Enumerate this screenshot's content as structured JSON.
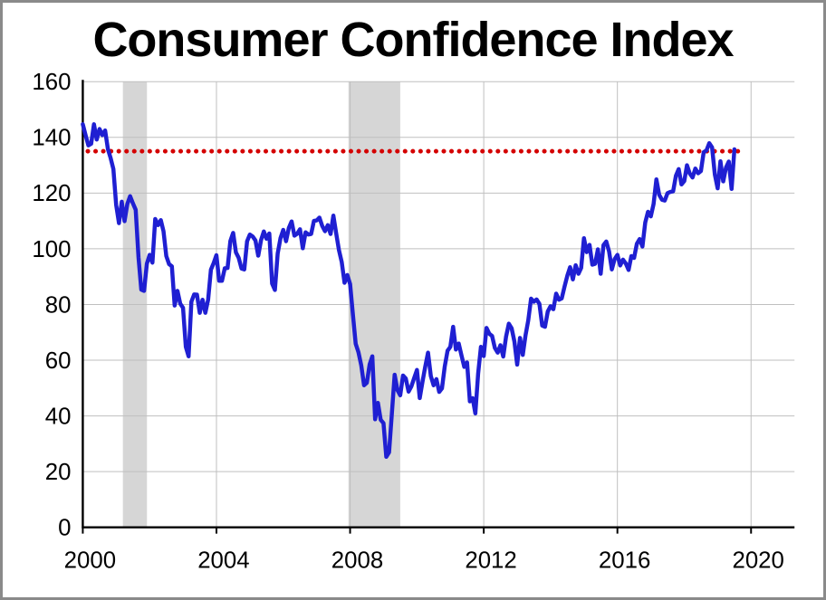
{
  "page": {
    "background": "#ffffff",
    "border_color": "#8a8a8a"
  },
  "chart_data": {
    "type": "line",
    "title": "Consumer Confidence Index",
    "xlabel": "",
    "ylabel": "",
    "x_range": [
      2000,
      2020
    ],
    "x_axis_end": 2021.3,
    "y_range": [
      0,
      160
    ],
    "x_ticks": [
      2000,
      2004,
      2008,
      2012,
      2016,
      2020
    ],
    "y_ticks": [
      0,
      20,
      40,
      60,
      80,
      100,
      120,
      140,
      160
    ],
    "grid": true,
    "grid_color": "#bfbfbf",
    "axis_color": "#000000",
    "band_color": "#d6d6d6",
    "recession_bands": [
      {
        "from": 2001.2,
        "to": 2001.92
      },
      {
        "from": 2007.95,
        "to": 2009.5
      }
    ],
    "reference_line": {
      "value": 135,
      "from": 2000.15,
      "to": 2019.7,
      "color": "#d40000",
      "style": "dotted"
    },
    "legend": "none",
    "series": [
      {
        "name": "Consumer Confidence Index",
        "color": "#1f1fd2",
        "frequency": "monthly",
        "start_year": 2000,
        "values": [
          144.7,
          140.8,
          137.1,
          137.7,
          144.7,
          139.2,
          143.0,
          140.8,
          142.5,
          135.8,
          132.6,
          128.6,
          115.7,
          109.2,
          116.9,
          109.9,
          116.1,
          118.9,
          116.3,
          114.0,
          97.0,
          85.3,
          84.9,
          94.6,
          97.8,
          95.0,
          110.7,
          108.5,
          110.3,
          106.3,
          97.4,
          94.5,
          93.7,
          79.6,
          84.9,
          80.3,
          78.8,
          64.8,
          61.4,
          81.0,
          83.6,
          83.5,
          77.0,
          81.7,
          77.0,
          81.7,
          92.5,
          94.8,
          97.7,
          88.5,
          88.5,
          93.0,
          93.1,
          102.8,
          105.7,
          98.7,
          96.7,
          92.9,
          92.6,
          102.7,
          105.1,
          104.4,
          103.0,
          97.5,
          103.1,
          106.2,
          103.6,
          105.5,
          87.5,
          85.2,
          98.3,
          103.8,
          106.8,
          102.7,
          107.5,
          109.8,
          104.7,
          105.4,
          107.0,
          100.2,
          105.9,
          105.1,
          105.3,
          110.0,
          110.2,
          111.2,
          108.2,
          106.3,
          108.5,
          105.3,
          111.9,
          105.6,
          99.5,
          95.2,
          87.8,
          90.6,
          87.3,
          76.4,
          65.9,
          62.8,
          58.1,
          51.0,
          51.9,
          58.5,
          61.4,
          38.8,
          44.7,
          38.6,
          37.4,
          25.3,
          26.9,
          40.8,
          54.8,
          49.3,
          47.4,
          54.5,
          53.4,
          48.7,
          50.6,
          53.6,
          56.5,
          46.4,
          52.3,
          57.7,
          62.7,
          54.3,
          51.0,
          53.2,
          48.6,
          49.9,
          57.8,
          63.4,
          64.8,
          72.0,
          63.8,
          66.0,
          61.7,
          57.6,
          59.2,
          45.2,
          46.4,
          40.9,
          55.2,
          64.8,
          61.5,
          71.6,
          69.5,
          68.7,
          64.4,
          62.7,
          65.4,
          61.3,
          68.4,
          73.1,
          71.5,
          66.7,
          58.4,
          68.0,
          61.9,
          69.0,
          74.3,
          82.1,
          81.0,
          81.8,
          80.2,
          72.4,
          72.0,
          77.5,
          79.4,
          78.3,
          83.9,
          81.7,
          82.2,
          86.4,
          90.3,
          93.4,
          89.0,
          94.1,
          91.0,
          93.1,
          103.8,
          98.8,
          101.4,
          94.3,
          94.6,
          99.8,
          91.0,
          101.3,
          102.6,
          99.1,
          92.6,
          96.3,
          97.8,
          94.0,
          96.1,
          94.7,
          92.4,
          97.4,
          96.7,
          101.8,
          103.5,
          100.8,
          109.4,
          113.3,
          111.6,
          116.1,
          124.9,
          119.4,
          117.6,
          117.3,
          120.0,
          120.4,
          120.6,
          126.2,
          128.6,
          123.1,
          124.3,
          130.0,
          127.0,
          125.6,
          128.8,
          127.1,
          127.9,
          134.7,
          135.3,
          137.9,
          136.4,
          126.6,
          121.7,
          131.4,
          124.2,
          129.2,
          131.3,
          121.5,
          135.7
        ]
      }
    ]
  }
}
